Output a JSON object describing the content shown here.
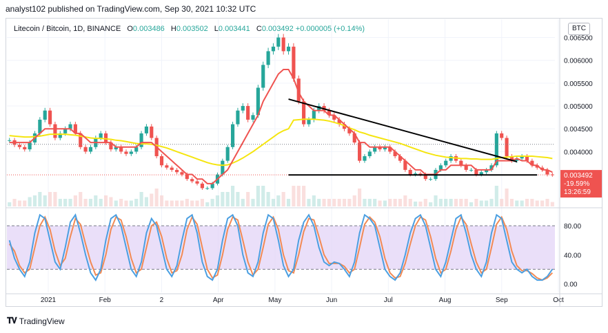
{
  "header": {
    "published": "analyst102 published on TradingView.com, Sep 30, 2021 10:32 UTC"
  },
  "legend": {
    "symbol": "Litecoin / Bitcoin, 1D, BINANCE",
    "o_label": "O",
    "o": "0.003486",
    "h_label": "H",
    "h": "0.003502",
    "l_label": "L",
    "l": "0.003441",
    "c_label": "C",
    "c": "0.003492",
    "change": "+0.000005 (+0.14%)"
  },
  "currency_button": "BTC",
  "price_tag": {
    "price": "0.003492",
    "change": "-19.59%",
    "countdown": "13:26:59"
  },
  "footer": {
    "brand": "TradingView"
  },
  "colors": {
    "up": "#26a69a",
    "down": "#ef5350",
    "ma_fast": "#ef5350",
    "ma_slow": "#f5e50f",
    "stoch_k": "#4b9fe1",
    "stoch_d": "#f28a54",
    "stoch_band": "#e1d2f7",
    "trendline": "#000000"
  },
  "chart_data": [
    {
      "type": "candlestick",
      "title": "Litecoin / Bitcoin, 1D, BINANCE",
      "x_ticks": [
        "2021",
        "Feb",
        "2",
        "Apr",
        "May",
        "Jun",
        "Jul",
        "Aug",
        "Sep",
        "Oct"
      ],
      "y_ticks": [
        "0.006500",
        "0.006000",
        "0.005500",
        "0.005000",
        "0.004500",
        "0.004000"
      ],
      "ylim": [
        0.0028,
        0.0069
      ],
      "grid": true,
      "closes": [
        0.00425,
        0.00415,
        0.0041,
        0.00405,
        0.0042,
        0.0044,
        0.0047,
        0.0049,
        0.0046,
        0.0043,
        0.0044,
        0.0045,
        0.0046,
        0.0044,
        0.0041,
        0.004,
        0.0041,
        0.0043,
        0.0044,
        0.0042,
        0.00405,
        0.0041,
        0.004,
        0.00395,
        0.004,
        0.0041,
        0.0044,
        0.00455,
        0.0043,
        0.0039,
        0.0037,
        0.00365,
        0.0036,
        0.00355,
        0.0035,
        0.0034,
        0.00335,
        0.0033,
        0.0032,
        0.0032,
        0.0033,
        0.0035,
        0.0038,
        0.0041,
        0.0046,
        0.0049,
        0.005,
        0.0047,
        0.0048,
        0.0054,
        0.0059,
        0.0062,
        0.0063,
        0.0065,
        0.0062,
        0.0063,
        0.0056,
        0.0051,
        0.0046,
        0.0047,
        0.0049,
        0.005,
        0.0049,
        0.0048,
        0.0047,
        0.0046,
        0.0045,
        0.0044,
        0.0042,
        0.0038,
        0.0039,
        0.004,
        0.0041,
        0.00405,
        0.0041,
        0.004,
        0.0039,
        0.0038,
        0.0036,
        0.0035,
        0.00352,
        0.0035,
        0.0034,
        0.0034,
        0.0036,
        0.0037,
        0.0038,
        0.0039,
        0.0038,
        0.0037,
        0.0036,
        0.0036,
        0.0035,
        0.00355,
        0.0036,
        0.0037,
        0.0044,
        0.0043,
        0.0039,
        0.0038,
        0.00385,
        0.0039,
        0.0038,
        0.0037,
        0.00365,
        0.0036,
        0.0035,
        0.003492
      ],
      "ma_fast": [
        0.0042,
        0.0042,
        0.0042,
        0.0042,
        0.0042,
        0.0043,
        0.0044,
        0.0045,
        0.0045,
        0.0045,
        0.0045,
        0.0045,
        0.0045,
        0.0044,
        0.0044,
        0.0043,
        0.0042,
        0.0042,
        0.0042,
        0.0042,
        0.0042,
        0.0041,
        0.0041,
        0.0041,
        0.0041,
        0.0041,
        0.0042,
        0.0042,
        0.0042,
        0.0041,
        0.004,
        0.0039,
        0.0038,
        0.0037,
        0.0036,
        0.0035,
        0.0035,
        0.0034,
        0.0034,
        0.0033,
        0.0033,
        0.0034,
        0.0035,
        0.0036,
        0.0038,
        0.004,
        0.0042,
        0.0044,
        0.0046,
        0.0048,
        0.0051,
        0.0053,
        0.0055,
        0.0057,
        0.0058,
        0.0058,
        0.0056,
        0.0053,
        0.0051,
        0.005,
        0.0049,
        0.0049,
        0.0049,
        0.0048,
        0.0048,
        0.0047,
        0.0046,
        0.0045,
        0.0044,
        0.0042,
        0.0042,
        0.0041,
        0.0041,
        0.0041,
        0.0041,
        0.0041,
        0.004,
        0.0039,
        0.0038,
        0.0037,
        0.0036,
        0.0036,
        0.0035,
        0.0035,
        0.0035,
        0.0036,
        0.0036,
        0.0037,
        0.0037,
        0.0037,
        0.0037,
        0.0037,
        0.0036,
        0.0036,
        0.0036,
        0.0036,
        0.0038,
        0.0038,
        0.0038,
        0.0038,
        0.00385,
        0.0038,
        0.0038,
        0.0037,
        0.0037,
        0.0036,
        0.0036,
        0.00355
      ],
      "ma_slow": [
        0.00435,
        0.00434,
        0.00433,
        0.00432,
        0.00432,
        0.00433,
        0.00434,
        0.00436,
        0.00438,
        0.00438,
        0.00438,
        0.00438,
        0.00437,
        0.00436,
        0.00434,
        0.00432,
        0.0043,
        0.00429,
        0.00429,
        0.00428,
        0.00427,
        0.00425,
        0.00424,
        0.00422,
        0.0042,
        0.00418,
        0.00417,
        0.00417,
        0.00416,
        0.00414,
        0.00411,
        0.00408,
        0.00404,
        0.004,
        0.00396,
        0.00392,
        0.00388,
        0.00384,
        0.0038,
        0.00376,
        0.00373,
        0.00371,
        0.0037,
        0.00371,
        0.00375,
        0.0038,
        0.00386,
        0.00393,
        0.004,
        0.00408,
        0.00416,
        0.00424,
        0.00432,
        0.0044,
        0.00446,
        0.0045,
        0.00469,
        0.0047,
        0.00471,
        0.00471,
        0.00471,
        0.0047,
        0.00469,
        0.00467,
        0.00464,
        0.00461,
        0.00457,
        0.00452,
        0.00448,
        0.00443,
        0.0044,
        0.00436,
        0.00433,
        0.0043,
        0.00427,
        0.00424,
        0.00421,
        0.00418,
        0.00414,
        0.0041,
        0.00406,
        0.00402,
        0.00398,
        0.00395,
        0.00392,
        0.0039,
        0.00388,
        0.00387,
        0.00386,
        0.00385,
        0.00385,
        0.00384,
        0.00384,
        0.00383,
        0.00383,
        0.00383,
        0.00385,
        0.00387,
        0.00388,
        0.00389,
        0.0039,
        0.0039,
        0.0039,
        0.0039,
        0.00389,
        0.00388,
        0.00387,
        0.00385
      ],
      "lines": [
        {
          "name": "descending trendline",
          "from": [
            55,
            0.00515
          ],
          "to": [
            100,
            0.00378
          ]
        },
        {
          "name": "horizontal support",
          "from": [
            55,
            0.00349
          ],
          "to": [
            104,
            0.00349
          ]
        }
      ]
    },
    {
      "type": "line",
      "title": "Stochastic RSI",
      "y_ticks": [
        "80.00",
        "40.00",
        "0.00"
      ],
      "ylim": [
        -12,
        102
      ],
      "bands": [
        20,
        80
      ],
      "series_k": [
        60,
        35,
        20,
        10,
        30,
        70,
        95,
        90,
        60,
        30,
        20,
        50,
        85,
        95,
        70,
        40,
        15,
        5,
        20,
        60,
        90,
        95,
        80,
        50,
        20,
        10,
        30,
        70,
        90,
        80,
        50,
        20,
        10,
        25,
        60,
        90,
        95,
        70,
        30,
        10,
        5,
        20,
        60,
        90,
        95,
        80,
        40,
        15,
        10,
        30,
        70,
        95,
        90,
        60,
        25,
        10,
        20,
        60,
        85,
        95,
        80,
        50,
        30,
        25,
        30,
        28,
        20,
        10,
        30,
        70,
        95,
        90,
        80,
        50,
        20,
        10,
        5,
        15,
        40,
        70,
        90,
        95,
        80,
        50,
        20,
        10,
        30,
        60,
        90,
        95,
        70,
        40,
        20,
        10,
        30,
        70,
        95,
        90,
        60,
        30,
        20,
        15,
        20,
        10,
        5,
        5,
        10,
        20
      ],
      "series_d": [
        55,
        45,
        25,
        15,
        20,
        50,
        80,
        92,
        75,
        45,
        25,
        35,
        65,
        90,
        82,
        55,
        30,
        12,
        15,
        40,
        75,
        92,
        88,
        65,
        35,
        15,
        20,
        50,
        80,
        85,
        65,
        35,
        15,
        18,
        40,
        75,
        92,
        82,
        50,
        20,
        8,
        12,
        40,
        75,
        92,
        88,
        60,
        30,
        12,
        20,
        50,
        82,
        92,
        75,
        40,
        18,
        15,
        40,
        72,
        90,
        88,
        65,
        40,
        28,
        28,
        28,
        24,
        15,
        20,
        50,
        82,
        92,
        85,
        65,
        35,
        15,
        8,
        10,
        28,
        55,
        80,
        92,
        88,
        65,
        35,
        15,
        20,
        45,
        75,
        92,
        82,
        55,
        30,
        15,
        20,
        50,
        82,
        92,
        75,
        45,
        25,
        18,
        18,
        14,
        8,
        5,
        8,
        15
      ]
    }
  ]
}
